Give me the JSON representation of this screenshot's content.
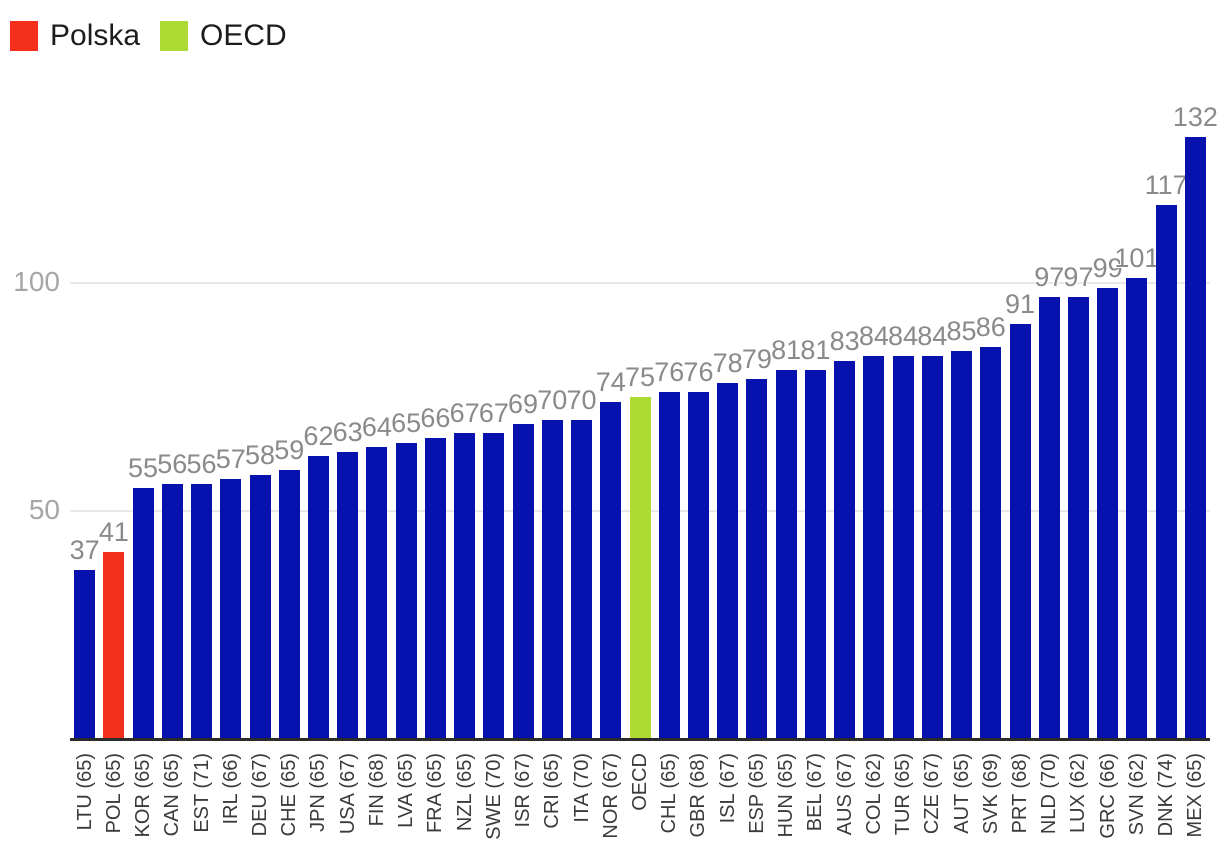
{
  "chart_data": {
    "type": "bar",
    "title": "",
    "xlabel": "",
    "ylabel": "",
    "legend_position": "top-left",
    "legend": [
      {
        "label": "Polska",
        "color": "#f2301c"
      },
      {
        "label": "OECD",
        "color": "#aedb33"
      }
    ],
    "categories": [
      "LTU (65)",
      "POL (65)",
      "KOR (65)",
      "CAN (65)",
      "EST (71)",
      "IRL (66)",
      "DEU (67)",
      "CHE (65)",
      "JPN (65)",
      "USA (67)",
      "FIN (68)",
      "LVA (65)",
      "FRA (65)",
      "NZL (65)",
      "SWE (70)",
      "ISR (67)",
      "CRI (65)",
      "ITA (70)",
      "NOR (67)",
      "OECD",
      "CHL (65)",
      "GBR (68)",
      "ISL (67)",
      "ESP (65)",
      "HUN (65)",
      "BEL (67)",
      "AUS (67)",
      "COL (62)",
      "TUR (65)",
      "CZE (67)",
      "AUT (65)",
      "SVK (69)",
      "PRT (68)",
      "NLD (70)",
      "LUX (62)",
      "GRC (66)",
      "SVN (62)",
      "DNK (74)",
      "MEX (65)"
    ],
    "values": [
      37,
      41,
      55,
      56,
      56,
      57,
      58,
      59,
      62,
      63,
      64,
      65,
      66,
      67,
      67,
      69,
      70,
      70,
      74,
      75,
      76,
      76,
      78,
      79,
      81,
      81,
      83,
      84,
      84,
      84,
      85,
      86,
      91,
      97,
      97,
      99,
      101,
      117,
      132
    ],
    "value_labels_shown": true,
    "highlighted_bars": {
      "POL (65)": "#f2301c",
      "OECD": "#aedb33"
    },
    "yticks": [
      50,
      100
    ],
    "ylim": [
      0,
      145
    ],
    "grid": "horizontal",
    "colors": {
      "bar_default": "#0712ae",
      "bar_polska": "#f2301c",
      "bar_oecd": "#aedb33",
      "gridline": "#e8e8e8",
      "axis_line": "#2b2b2b",
      "value_label": "#8a8a8a",
      "y_tick_label": "#a6a6a6",
      "x_tick_label": "#3b3b3b",
      "legend_text": "#1c1c1c"
    }
  }
}
